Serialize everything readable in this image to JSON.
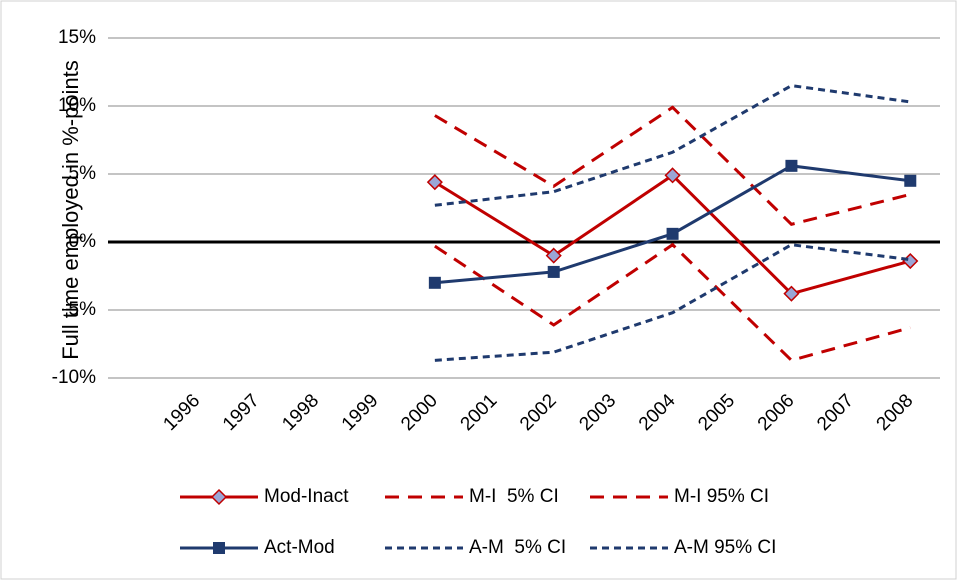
{
  "chart_data": {
    "type": "line",
    "y_label": "Full time employed in %-points",
    "x": [
      2000,
      2002,
      2004,
      2006,
      2008
    ],
    "xlim": [
      1994.5,
      2008.5
    ],
    "xticks": [
      1996,
      1997,
      1998,
      1999,
      2000,
      2001,
      2002,
      2003,
      2004,
      2005,
      2006,
      2007,
      2008
    ],
    "ylim": [
      -10,
      15
    ],
    "yticks": [
      {
        "value": -10,
        "label": "-10%"
      },
      {
        "value": -5,
        "label": "-5%"
      },
      {
        "value": 0,
        "label": "0%"
      },
      {
        "value": 5,
        "label": "5%"
      },
      {
        "value": 10,
        "label": "10%"
      },
      {
        "value": 15,
        "label": "15%"
      }
    ],
    "grid": true,
    "series": [
      {
        "name": "Mod-Inact",
        "color": "#c00000",
        "dash": "solid",
        "marker": "diamond",
        "values": [
          4.4,
          -1.0,
          4.9,
          -3.8,
          -1.4
        ]
      },
      {
        "name": "M-I  5% CI",
        "color": "#c00000",
        "dash": "long",
        "marker": "none",
        "values": [
          -0.3,
          -6.1,
          -0.2,
          -8.7,
          -6.3
        ]
      },
      {
        "name": "M-I 95% CI",
        "color": "#c00000",
        "dash": "long",
        "marker": "none",
        "values": [
          9.3,
          4.1,
          9.9,
          1.3,
          3.5
        ]
      },
      {
        "name": "Act-Mod",
        "color": "#1f3a6e",
        "dash": "solid",
        "marker": "square",
        "values": [
          -3.0,
          -2.2,
          0.6,
          5.6,
          4.5
        ]
      },
      {
        "name": "A-M  5% CI",
        "color": "#1f3a6e",
        "dash": "short",
        "marker": "none",
        "values": [
          -8.7,
          -8.1,
          -5.2,
          -0.2,
          -1.3
        ]
      },
      {
        "name": "A-M 95% CI",
        "color": "#1f3a6e",
        "dash": "short",
        "marker": "none",
        "values": [
          2.7,
          3.7,
          6.6,
          11.5,
          10.3
        ]
      }
    ]
  }
}
